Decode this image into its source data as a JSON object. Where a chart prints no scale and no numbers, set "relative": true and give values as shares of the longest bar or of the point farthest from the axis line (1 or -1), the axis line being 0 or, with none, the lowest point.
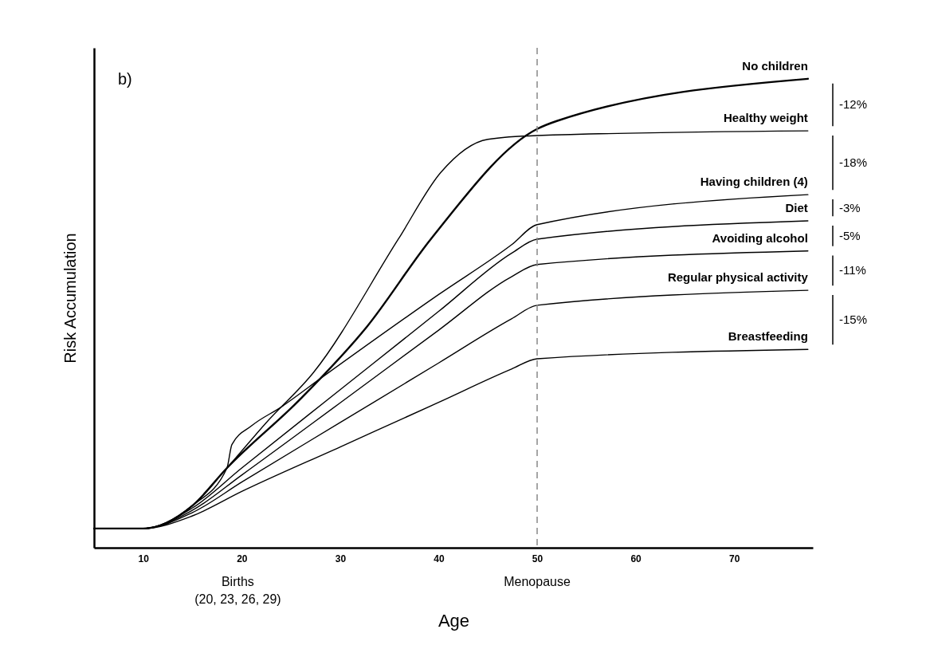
{
  "chart_data": {
    "type": "line",
    "relative": true,
    "xlabel": "Age",
    "ylabel": "Risk Accumulation",
    "xlim": [
      5,
      78
    ],
    "xticks": [
      10,
      20,
      30,
      40,
      50,
      60,
      70
    ],
    "grid": false,
    "legend": "right",
    "marker": "none",
    "line_style": "solid",
    "series": [
      {
        "name": "No children",
        "color": "#000000",
        "x": [
          5,
          10,
          15,
          18.5,
          26,
          32.7,
          39.2,
          50,
          52,
          77.5
        ],
        "values": [
          0.041,
          0.041,
          0.09,
          0.17,
          0.318,
          0.471,
          0.658,
          0.893,
          0.91,
          1.0
        ]
      },
      {
        "name": "Healthy weight",
        "color": "#000000",
        "x": [
          5,
          10,
          15,
          18.5,
          22.5,
          27.3,
          35.9,
          40.2,
          45,
          50,
          77.5
        ],
        "values": [
          0.041,
          0.041,
          0.09,
          0.17,
          0.267,
          0.374,
          0.658,
          0.8,
          0.871,
          0.879,
          0.889
        ]
      },
      {
        "name": "Having children (4)",
        "color": "#000000",
        "x": [
          5,
          10,
          15,
          18.5,
          19,
          21,
          24,
          28.2,
          40,
          47.4,
          50,
          77.5
        ],
        "values": [
          0.041,
          0.041,
          0.09,
          0.17,
          0.22,
          0.26,
          0.3,
          0.364,
          0.54,
          0.646,
          0.689,
          0.753
        ]
      },
      {
        "name": "Diet",
        "color": "#000000",
        "x": [
          5,
          10,
          15,
          20,
          30,
          40,
          47.4,
          50,
          77.5
        ],
        "values": [
          0.041,
          0.041,
          0.085,
          0.17,
          0.337,
          0.504,
          0.628,
          0.658,
          0.697
        ]
      },
      {
        "name": "Avoiding alcohol",
        "color": "#000000",
        "x": [
          5,
          10,
          15,
          20,
          30,
          40,
          47.4,
          50,
          77.5
        ],
        "values": [
          0.041,
          0.041,
          0.08,
          0.155,
          0.309,
          0.464,
          0.578,
          0.604,
          0.633
        ]
      },
      {
        "name": "Regular physical activity",
        "color": "#000000",
        "x": [
          5,
          10,
          15,
          20,
          30,
          40,
          47.4,
          50,
          77.5
        ],
        "values": [
          0.041,
          0.041,
          0.075,
          0.14,
          0.267,
          0.394,
          0.488,
          0.517,
          0.549
        ]
      },
      {
        "name": "Breastfeeding",
        "color": "#000000",
        "x": [
          5,
          10,
          15,
          20,
          30,
          40,
          47.4,
          50,
          77.5
        ],
        "values": [
          0.041,
          0.041,
          0.068,
          0.12,
          0.215,
          0.31,
          0.381,
          0.403,
          0.423
        ]
      }
    ],
    "ref_lines": [
      {
        "axis": "x",
        "value": 50,
        "label": "Menopause",
        "line_style": "dashed",
        "color": "#888888"
      }
    ],
    "annotations": [
      "b)",
      "Births\n(20, 23, 26, 29)",
      "-12%",
      "-18%",
      "-3%",
      "-5%",
      "-11%",
      "-15%"
    ]
  }
}
